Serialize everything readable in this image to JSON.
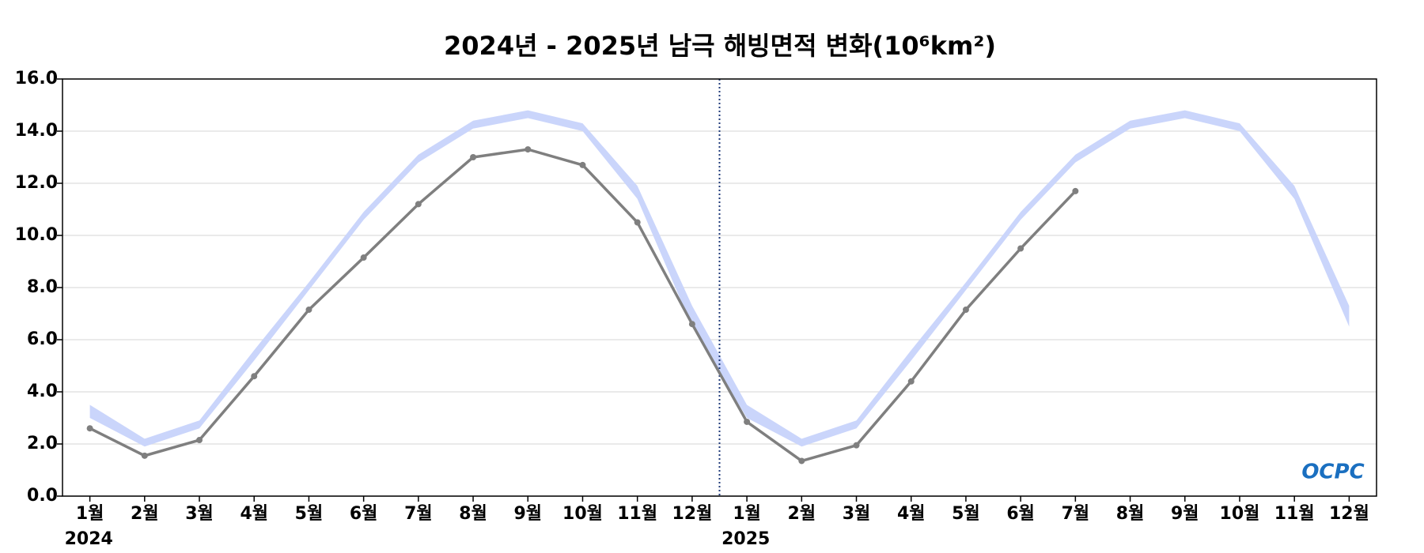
{
  "chart_data": {
    "type": "line",
    "title": "2024년 - 2025년 남극 해빙면적 변화(10⁶km²)",
    "categories": [
      "1월",
      "2월",
      "3월",
      "4월",
      "5월",
      "6월",
      "7월",
      "8월",
      "9월",
      "10월",
      "11월",
      "12월",
      "1월",
      "2월",
      "3월",
      "4월",
      "5월",
      "6월",
      "7월",
      "8월",
      "9월",
      "10월",
      "11월",
      "12월"
    ],
    "year_labels": [
      "2024",
      "2025"
    ],
    "series": [
      {
        "color": "#7f7f7f",
        "values": [
          2.6,
          1.55,
          2.15,
          4.6,
          7.15,
          9.15,
          11.2,
          13.0,
          13.3,
          12.7,
          10.5,
          6.6,
          2.85,
          1.35,
          1.95,
          4.4,
          7.15,
          9.5,
          11.7,
          null,
          null,
          null,
          null,
          null
        ]
      }
    ],
    "band": {
      "color": "#cad5fb",
      "lower": [
        3.0,
        1.9,
        2.6,
        5.2,
        7.9,
        10.6,
        12.8,
        14.1,
        14.5,
        14.0,
        11.4,
        6.5,
        3.0,
        1.9,
        2.6,
        5.2,
        7.9,
        10.6,
        12.8,
        14.1,
        14.5,
        14.0,
        11.4,
        6.5
      ],
      "upper": [
        3.5,
        2.2,
        2.9,
        5.6,
        8.2,
        10.9,
        13.1,
        14.4,
        14.8,
        14.3,
        11.9,
        7.3,
        3.5,
        2.2,
        2.9,
        5.6,
        8.2,
        10.9,
        13.1,
        14.4,
        14.8,
        14.3,
        11.9,
        7.3
      ]
    },
    "ylim": [
      0,
      16
    ],
    "yticks": [
      {
        "value": 0,
        "label": "0.0"
      },
      {
        "value": 2,
        "label": "2.0"
      },
      {
        "value": 4,
        "label": "4.0"
      },
      {
        "value": 6,
        "label": "6.0"
      },
      {
        "value": 8,
        "label": "8.0"
      },
      {
        "value": 10,
        "label": "10.0"
      },
      {
        "value": 12,
        "label": "12.0"
      },
      {
        "value": 14,
        "label": "14.0"
      },
      {
        "value": 16,
        "label": "16.0"
      }
    ],
    "grid": true,
    "logo": "OCPC"
  }
}
